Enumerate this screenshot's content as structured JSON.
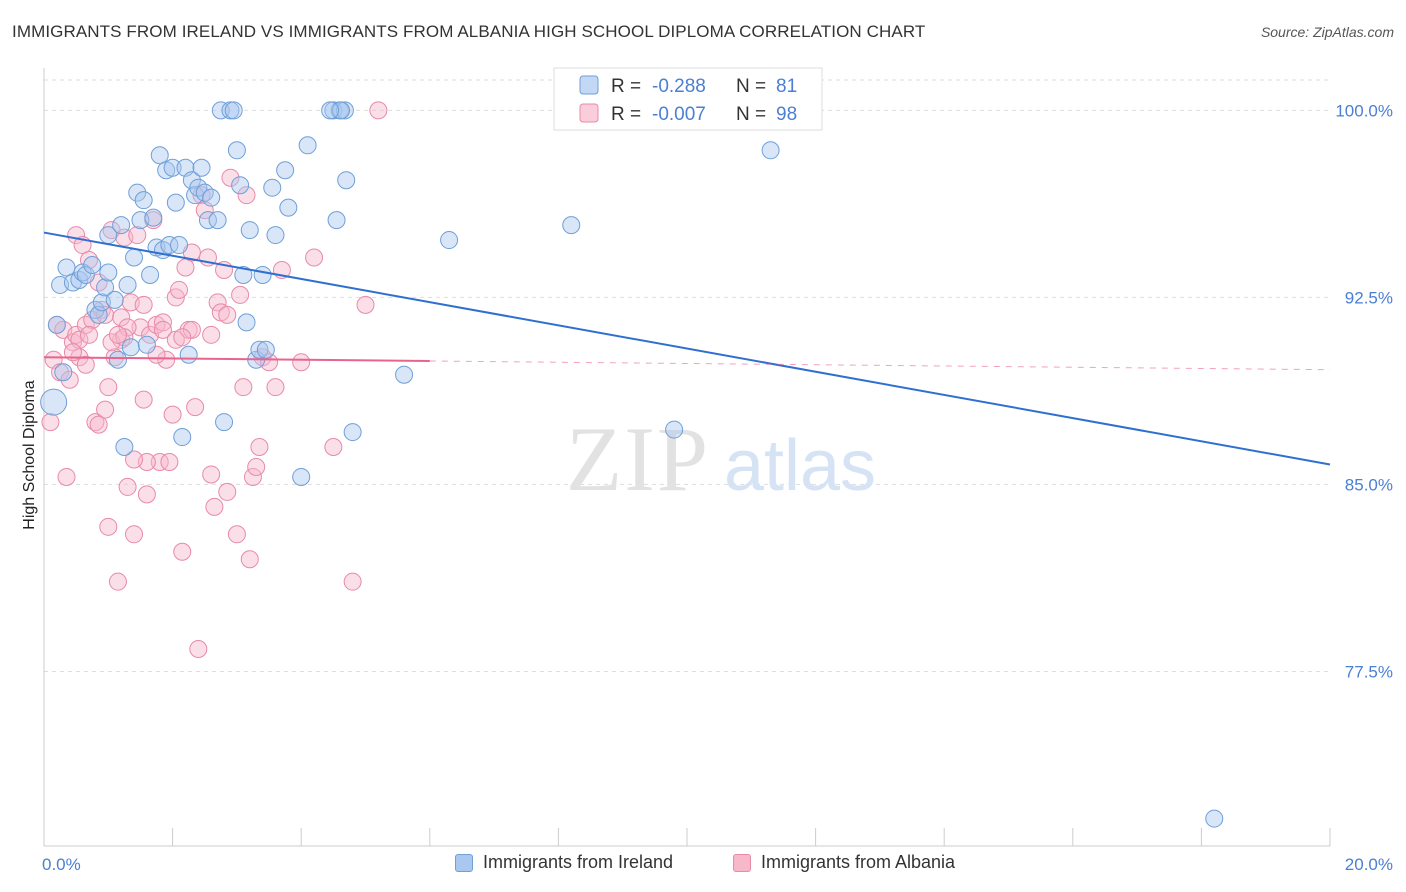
{
  "title": "IMMIGRANTS FROM IRELAND VS IMMIGRANTS FROM ALBANIA HIGH SCHOOL DIPLOMA CORRELATION CHART",
  "source": "Source: ZipAtlas.com",
  "watermark": {
    "zip": "ZIP",
    "atlas": "atlas"
  },
  "colors": {
    "ireland_fill": "#a9c8f0",
    "ireland_stroke": "#6f9fd8",
    "ireland_line": "#2f6fcf",
    "albania_fill": "#f7b8cb",
    "albania_stroke": "#e88aa8",
    "albania_line": "#e8648f",
    "axis_text": "#4a7fd4",
    "grid": "#dddddd"
  },
  "legend": {
    "rows": [
      {
        "r_label": "R =",
        "r_value": "-0.288",
        "n_label": "N =",
        "n_value": "81"
      },
      {
        "r_label": "R =",
        "r_value": "-0.007",
        "n_label": "N =",
        "n_value": "98"
      }
    ]
  },
  "bottom_legend": [
    "Immigrants from Ireland",
    "Immigrants from Albania"
  ],
  "chart_data": {
    "type": "scatter",
    "title": "IMMIGRANTS FROM IRELAND VS IMMIGRANTS FROM ALBANIA HIGH SCHOOL DIPLOMA CORRELATION CHART",
    "xlabel": "",
    "ylabel": "High School Diploma",
    "xlim": [
      0,
      20
    ],
    "ylim": [
      70.5,
      101.7
    ],
    "x_ticks": [
      0,
      2,
      4,
      6,
      8,
      10,
      12,
      14,
      16,
      18,
      20
    ],
    "x_tick_labels": [
      {
        "value": 0,
        "label": "0.0%"
      },
      {
        "value": 20,
        "label": "20.0%"
      }
    ],
    "y_ticks": [
      {
        "value": 100,
        "label": "100.0%"
      },
      {
        "value": 92.5,
        "label": "92.5%"
      },
      {
        "value": 85,
        "label": "85.0%"
      },
      {
        "value": 77.5,
        "label": "77.5%"
      }
    ],
    "grid": true,
    "legend_position": "top-center",
    "series": [
      {
        "name": "Immigrants from Ireland",
        "trend": {
          "x": [
            0,
            20
          ],
          "y": [
            95.1,
            85.8
          ],
          "dashed_from": null
        },
        "points": [
          [
            0.15,
            88.3
          ],
          [
            0.2,
            91.4
          ],
          [
            0.3,
            89.5
          ],
          [
            0.25,
            93.0
          ],
          [
            0.35,
            93.7
          ],
          [
            0.45,
            93.1
          ],
          [
            0.55,
            93.2
          ],
          [
            0.6,
            93.5
          ],
          [
            0.65,
            93.4
          ],
          [
            0.75,
            93.8
          ],
          [
            0.8,
            92.0
          ],
          [
            0.85,
            91.8
          ],
          [
            0.9,
            92.3
          ],
          [
            0.95,
            92.9
          ],
          [
            1.0,
            95.0
          ],
          [
            1.0,
            93.5
          ],
          [
            1.1,
            92.4
          ],
          [
            1.15,
            90.0
          ],
          [
            1.2,
            95.4
          ],
          [
            1.25,
            86.5
          ],
          [
            1.3,
            93.0
          ],
          [
            1.35,
            90.5
          ],
          [
            1.4,
            94.1
          ],
          [
            1.45,
            96.7
          ],
          [
            1.5,
            95.6
          ],
          [
            1.55,
            96.4
          ],
          [
            1.6,
            90.6
          ],
          [
            1.65,
            93.4
          ],
          [
            1.7,
            95.7
          ],
          [
            1.75,
            94.5
          ],
          [
            1.8,
            98.2
          ],
          [
            1.85,
            94.4
          ],
          [
            1.9,
            97.6
          ],
          [
            1.95,
            94.6
          ],
          [
            2.0,
            97.7
          ],
          [
            2.05,
            96.3
          ],
          [
            2.1,
            94.6
          ],
          [
            2.15,
            86.9
          ],
          [
            2.2,
            97.7
          ],
          [
            2.25,
            90.2
          ],
          [
            2.3,
            97.2
          ],
          [
            2.35,
            96.6
          ],
          [
            2.4,
            96.9
          ],
          [
            2.45,
            97.7
          ],
          [
            2.5,
            96.7
          ],
          [
            2.55,
            95.6
          ],
          [
            2.6,
            96.5
          ],
          [
            2.7,
            95.6
          ],
          [
            2.75,
            100.0
          ],
          [
            2.8,
            87.5
          ],
          [
            2.9,
            100.0
          ],
          [
            3.0,
            98.4
          ],
          [
            3.05,
            97.0
          ],
          [
            3.1,
            93.4
          ],
          [
            3.15,
            91.5
          ],
          [
            3.2,
            95.2
          ],
          [
            3.3,
            90.0
          ],
          [
            3.35,
            90.4
          ],
          [
            3.45,
            90.4
          ],
          [
            3.4,
            93.4
          ],
          [
            3.55,
            96.9
          ],
          [
            3.6,
            95.0
          ],
          [
            3.75,
            97.6
          ],
          [
            3.8,
            96.1
          ],
          [
            4.0,
            85.3
          ],
          [
            4.1,
            98.6
          ],
          [
            4.5,
            100.0
          ],
          [
            4.6,
            100.0
          ],
          [
            4.7,
            97.2
          ],
          [
            4.55,
            95.6
          ],
          [
            4.8,
            87.1
          ],
          [
            5.6,
            89.4
          ],
          [
            6.3,
            94.8
          ],
          [
            8.2,
            95.4
          ],
          [
            9.8,
            87.2
          ],
          [
            11.3,
            98.4
          ],
          [
            18.2,
            71.6
          ],
          [
            4.68,
            100.0
          ],
          [
            4.62,
            100.0
          ],
          [
            2.95,
            100.0
          ],
          [
            4.45,
            100.0
          ]
        ]
      },
      {
        "name": "Immigrants from Albania",
        "trend": {
          "x": [
            0,
            20
          ],
          "y": [
            90.1,
            89.6
          ],
          "dashed_from": 6.0
        },
        "points": [
          [
            0.1,
            87.5
          ],
          [
            0.15,
            90.0
          ],
          [
            0.2,
            91.4
          ],
          [
            0.25,
            89.5
          ],
          [
            0.3,
            91.2
          ],
          [
            0.35,
            85.3
          ],
          [
            0.4,
            89.2
          ],
          [
            0.45,
            90.7
          ],
          [
            0.5,
            91.0
          ],
          [
            0.5,
            95.0
          ],
          [
            0.55,
            90.8
          ],
          [
            0.6,
            94.6
          ],
          [
            0.65,
            91.4
          ],
          [
            0.7,
            94.0
          ],
          [
            0.75,
            91.6
          ],
          [
            0.8,
            87.5
          ],
          [
            0.85,
            93.1
          ],
          [
            0.9,
            92.0
          ],
          [
            0.95,
            91.8
          ],
          [
            1.0,
            83.3
          ],
          [
            1.05,
            95.2
          ],
          [
            1.1,
            90.1
          ],
          [
            1.15,
            81.1
          ],
          [
            1.2,
            91.7
          ],
          [
            1.2,
            90.8
          ],
          [
            1.25,
            94.9
          ],
          [
            1.3,
            84.9
          ],
          [
            1.35,
            92.3
          ],
          [
            1.4,
            83.0
          ],
          [
            1.45,
            95.0
          ],
          [
            1.5,
            91.3
          ],
          [
            1.55,
            92.2
          ],
          [
            1.6,
            84.6
          ],
          [
            1.65,
            91.0
          ],
          [
            1.7,
            95.6
          ],
          [
            1.75,
            91.4
          ],
          [
            1.8,
            85.9
          ],
          [
            1.85,
            91.5
          ],
          [
            1.9,
            90.0
          ],
          [
            1.95,
            85.9
          ],
          [
            2.0,
            87.8
          ],
          [
            2.05,
            92.5
          ],
          [
            2.1,
            92.8
          ],
          [
            2.15,
            82.3
          ],
          [
            2.2,
            93.7
          ],
          [
            2.25,
            91.2
          ],
          [
            2.3,
            91.2
          ],
          [
            2.35,
            88.1
          ],
          [
            2.4,
            78.4
          ],
          [
            2.45,
            96.6
          ],
          [
            2.5,
            96.0
          ],
          [
            2.55,
            94.1
          ],
          [
            2.6,
            85.4
          ],
          [
            2.65,
            84.1
          ],
          [
            2.7,
            92.3
          ],
          [
            2.75,
            91.9
          ],
          [
            2.8,
            93.6
          ],
          [
            2.85,
            84.7
          ],
          [
            2.9,
            97.3
          ],
          [
            3.0,
            83.0
          ],
          [
            3.1,
            88.9
          ],
          [
            3.15,
            96.6
          ],
          [
            3.2,
            82.0
          ],
          [
            3.25,
            85.3
          ],
          [
            3.3,
            85.7
          ],
          [
            3.4,
            90.1
          ],
          [
            3.5,
            89.9
          ],
          [
            3.6,
            88.9
          ],
          [
            3.7,
            93.6
          ],
          [
            4.0,
            89.9
          ],
          [
            4.2,
            94.1
          ],
          [
            4.5,
            86.5
          ],
          [
            4.8,
            81.1
          ],
          [
            5.0,
            92.2
          ],
          [
            5.2,
            100.0
          ],
          [
            1.0,
            88.9
          ],
          [
            1.3,
            91.3
          ],
          [
            1.6,
            85.9
          ],
          [
            0.7,
            91.0
          ],
          [
            1.05,
            90.7
          ],
          [
            1.85,
            91.2
          ],
          [
            2.3,
            94.3
          ],
          [
            2.05,
            90.8
          ],
          [
            0.55,
            90.1
          ],
          [
            0.95,
            88.0
          ],
          [
            1.4,
            86.0
          ],
          [
            2.6,
            91.0
          ],
          [
            3.35,
            86.5
          ],
          [
            1.75,
            90.2
          ],
          [
            0.85,
            87.4
          ],
          [
            2.15,
            90.9
          ],
          [
            1.25,
            90.9
          ],
          [
            1.55,
            88.4
          ],
          [
            0.45,
            90.3
          ],
          [
            2.85,
            91.8
          ],
          [
            3.05,
            92.6
          ],
          [
            0.65,
            89.8
          ],
          [
            1.15,
            91.0
          ]
        ]
      }
    ]
  }
}
